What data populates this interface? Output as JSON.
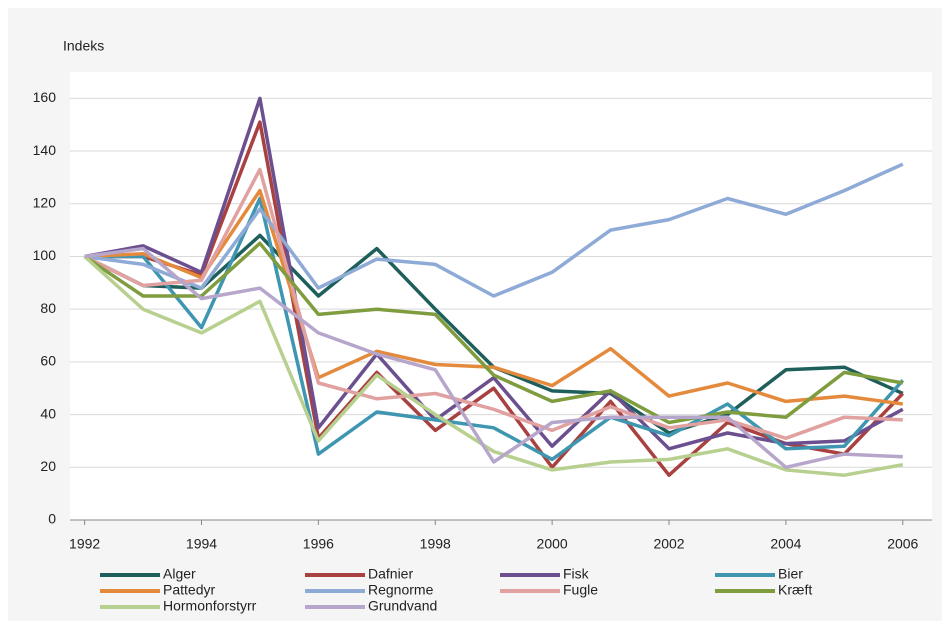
{
  "chart_data": {
    "type": "line",
    "y_label": "Indeks",
    "x": [
      1992,
      1993,
      1994,
      1995,
      1996,
      1997,
      1998,
      1999,
      2000,
      2001,
      2002,
      2003,
      2004,
      2005,
      2006
    ],
    "xlim": [
      1991.75,
      2006.5
    ],
    "xticks": [
      1992,
      1994,
      1996,
      1998,
      2000,
      2002,
      2004,
      2006
    ],
    "ylim": [
      0,
      170
    ],
    "yticks": [
      0,
      20,
      40,
      60,
      80,
      100,
      120,
      140,
      160
    ],
    "grid": true,
    "series": [
      {
        "name": "Alger",
        "color": "#1f5f5b",
        "values": [
          100,
          89,
          88,
          108,
          85,
          103,
          80,
          58,
          49,
          48,
          33,
          40,
          57,
          58,
          48
        ]
      },
      {
        "name": "Dafnier",
        "color": "#a8413f",
        "values": [
          100,
          100,
          93,
          151,
          31,
          56,
          34,
          50,
          20,
          45,
          17,
          37,
          29,
          25,
          48
        ]
      },
      {
        "name": "Fisk",
        "color": "#6b4f8f",
        "values": [
          100,
          104,
          94,
          160,
          35,
          63,
          38,
          54,
          28,
          49,
          27,
          33,
          29,
          30,
          42
        ]
      },
      {
        "name": "Bier",
        "color": "#3e96b0",
        "values": [
          100,
          100,
          73,
          122,
          25,
          41,
          38,
          35,
          23,
          39,
          32,
          44,
          27,
          28,
          53
        ]
      },
      {
        "name": "Pattedyr",
        "color": "#e48a3c",
        "values": [
          100,
          101,
          92,
          125,
          54,
          64,
          59,
          58,
          51,
          65,
          47,
          52,
          45,
          47,
          44
        ]
      },
      {
        "name": "Regnorme",
        "color": "#8eaad6",
        "values": [
          100,
          97,
          88,
          118,
          88,
          99,
          97,
          85,
          94,
          110,
          114,
          122,
          116,
          125,
          135
        ]
      },
      {
        "name": "Fugle",
        "color": "#e0a1a0",
        "values": [
          100,
          89,
          91,
          133,
          52,
          46,
          48,
          42,
          34,
          43,
          35,
          38,
          31,
          39,
          38
        ]
      },
      {
        "name": "Kræft",
        "color": "#7f9c3f",
        "values": [
          100,
          85,
          85,
          105,
          78,
          80,
          78,
          55,
          45,
          49,
          37,
          41,
          39,
          56,
          52
        ]
      },
      {
        "name": "Hormonforstyrr",
        "color": "#b8d08f",
        "values": [
          100,
          80,
          71,
          83,
          30,
          55,
          40,
          26,
          19,
          22,
          23,
          27,
          19,
          17,
          21
        ]
      },
      {
        "name": "Grundvand",
        "color": "#b7a6cb",
        "values": [
          100,
          103,
          84,
          88,
          71,
          63,
          57,
          22,
          37,
          39,
          39,
          39,
          20,
          25,
          24
        ]
      }
    ]
  }
}
